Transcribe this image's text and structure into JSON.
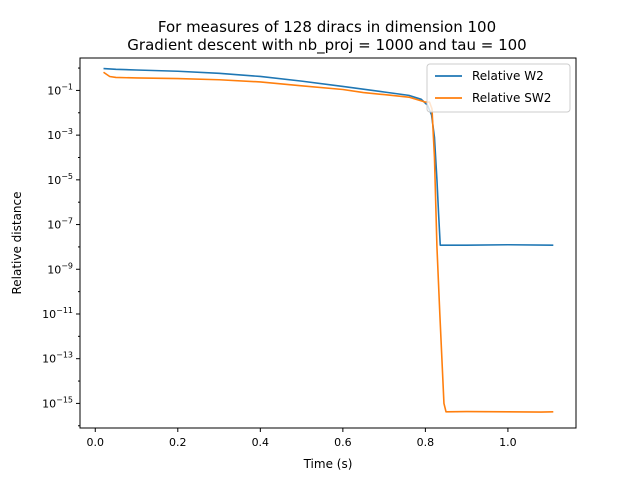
{
  "chart_data": {
    "type": "line",
    "title_line1": "For measures of 128 diracs in dimension 100",
    "title_line2": "Gradient descent with nb_proj = 1000 and tau = 100",
    "xlabel": "Time (s)",
    "ylabel": "Relative distance",
    "xlim": [
      -0.037,
      1.165
    ],
    "ylim_log10": [
      -16.1,
      0.45
    ],
    "yscale": "log",
    "legend_position": "upper right",
    "xticks": [
      {
        "value": 0.0,
        "label": "0.0"
      },
      {
        "value": 0.2,
        "label": "0.2"
      },
      {
        "value": 0.4,
        "label": "0.4"
      },
      {
        "value": 0.6,
        "label": "0.6"
      },
      {
        "value": 0.8,
        "label": "0.8"
      },
      {
        "value": 1.0,
        "label": "1.0"
      }
    ],
    "yticks": [
      {
        "exp": -1,
        "base": "10",
        "sup": "−1"
      },
      {
        "exp": -3,
        "base": "10",
        "sup": "−3"
      },
      {
        "exp": -5,
        "base": "10",
        "sup": "−5"
      },
      {
        "exp": -7,
        "base": "10",
        "sup": "−7"
      },
      {
        "exp": -9,
        "base": "10",
        "sup": "−9"
      },
      {
        "exp": -11,
        "base": "10",
        "sup": "−11"
      },
      {
        "exp": -13,
        "base": "10",
        "sup": "−13"
      },
      {
        "exp": -15,
        "base": "10",
        "sup": "−15"
      }
    ],
    "series": [
      {
        "name": "Relative W2",
        "color": "#1f77b4",
        "points": [
          [
            0.02,
            0.95
          ],
          [
            0.05,
            0.88
          ],
          [
            0.1,
            0.82
          ],
          [
            0.2,
            0.72
          ],
          [
            0.3,
            0.58
          ],
          [
            0.4,
            0.42
          ],
          [
            0.5,
            0.26
          ],
          [
            0.6,
            0.15
          ],
          [
            0.7,
            0.085
          ],
          [
            0.76,
            0.06
          ],
          [
            0.79,
            0.04
          ],
          [
            0.805,
            0.022
          ],
          [
            0.815,
            0.008
          ],
          [
            0.822,
            0.0008
          ],
          [
            0.828,
            1e-05
          ],
          [
            0.832,
            3e-07
          ],
          [
            0.836,
            1.2e-08
          ],
          [
            0.9,
            1.2e-08
          ],
          [
            1.0,
            1.25e-08
          ],
          [
            1.11,
            1.2e-08
          ]
        ]
      },
      {
        "name": "Relative SW2",
        "color": "#ff7f0e",
        "points": [
          [
            0.02,
            0.65
          ],
          [
            0.035,
            0.42
          ],
          [
            0.05,
            0.38
          ],
          [
            0.1,
            0.36
          ],
          [
            0.2,
            0.34
          ],
          [
            0.3,
            0.3
          ],
          [
            0.4,
            0.24
          ],
          [
            0.5,
            0.16
          ],
          [
            0.6,
            0.11
          ],
          [
            0.65,
            0.08
          ],
          [
            0.7,
            0.065
          ],
          [
            0.76,
            0.05
          ],
          [
            0.8,
            0.03
          ],
          [
            0.81,
            0.03
          ],
          [
            0.816,
            0.015
          ],
          [
            0.822,
            0.0001
          ],
          [
            0.828,
            1e-08
          ],
          [
            0.835,
            1e-11
          ],
          [
            0.845,
            1e-15
          ],
          [
            0.85,
            4.2e-16
          ],
          [
            0.9,
            4.3e-16
          ],
          [
            1.0,
            4.2e-16
          ],
          [
            1.08,
            4.1e-16
          ],
          [
            1.11,
            4.2e-16
          ]
        ]
      }
    ]
  }
}
